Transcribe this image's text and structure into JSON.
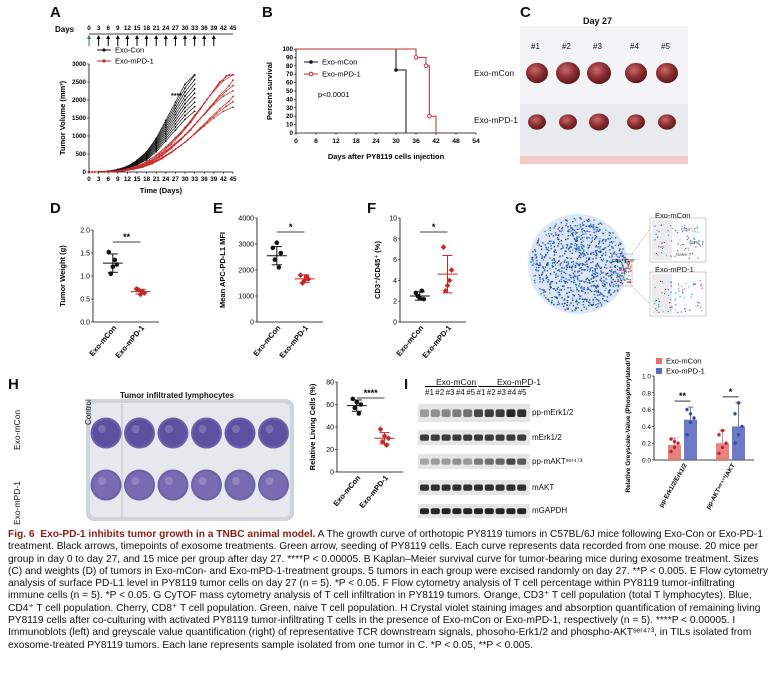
{
  "panels": {
    "A": "A",
    "B": "B",
    "C": "C",
    "D": "D",
    "E": "E",
    "F": "F",
    "G": "G",
    "H": "H",
    "I": "I"
  },
  "panelA": {
    "timeline_label": "Days",
    "timeline_ticks": [
      "0",
      "3",
      "6",
      "9",
      "12",
      "15",
      "18",
      "21",
      "24",
      "27",
      "30",
      "33",
      "36",
      "39",
      "42",
      "45"
    ],
    "chart_data": {
      "type": "line",
      "title": "",
      "xlabel": "Time (Days)",
      "ylabel": "Tumor Volume (mm³)",
      "xlim": [
        0,
        45
      ],
      "ylim": [
        0,
        3000
      ],
      "xticks": [
        "0",
        "3",
        "6",
        "9",
        "12",
        "15",
        "18",
        "21",
        "24",
        "27",
        "30",
        "33",
        "36",
        "39",
        "42",
        "45"
      ],
      "yticks": [
        "0",
        "500",
        "1000",
        "1500",
        "2000",
        "2500",
        "3000"
      ],
      "annotation": "****",
      "series": [
        {
          "name": "Exo-Con",
          "color": "#111111",
          "x": [
            0,
            3,
            6,
            9,
            12,
            15,
            18,
            21,
            24,
            27,
            30,
            33
          ],
          "values": [
            0,
            5,
            20,
            60,
            130,
            260,
            450,
            750,
            1150,
            1550,
            1950,
            2250
          ]
        },
        {
          "name": "Exo-mPD-1",
          "color": "#c62828",
          "x": [
            0,
            3,
            6,
            9,
            12,
            15,
            18,
            21,
            24,
            27,
            30,
            33,
            36,
            39,
            42,
            45
          ],
          "values": [
            0,
            4,
            12,
            35,
            80,
            150,
            260,
            420,
            620,
            850,
            1100,
            1400,
            1700,
            2000,
            2250,
            2400
          ]
        }
      ]
    }
  },
  "panelB": {
    "chart_data": {
      "type": "line",
      "xlabel": "Days after PY8119 cells injection",
      "ylabel": "Percent survival",
      "xlim": [
        0,
        54
      ],
      "ylim": [
        0,
        100
      ],
      "xticks": [
        "0",
        "6",
        "12",
        "18",
        "24",
        "30",
        "36",
        "42",
        "48",
        "54"
      ],
      "yticks": [
        "0",
        "10",
        "20",
        "30",
        "40",
        "50",
        "60",
        "70",
        "80",
        "90",
        "100"
      ],
      "annotation": "p<0.0001",
      "series": [
        {
          "name": "Exo-mCon",
          "color": "#111111",
          "steps": [
            [
              0,
              100
            ],
            [
              30,
              100
            ],
            [
              30,
              75
            ],
            [
              33,
              75
            ],
            [
              33,
              0
            ]
          ]
        },
        {
          "name": "Exo-mPD-1",
          "color": "#c62828",
          "steps": [
            [
              0,
              100
            ],
            [
              36,
              100
            ],
            [
              36,
              90
            ],
            [
              39,
              90
            ],
            [
              39,
              80
            ],
            [
              40,
              80
            ],
            [
              40,
              20
            ],
            [
              42,
              20
            ],
            [
              42,
              0
            ]
          ]
        }
      ]
    }
  },
  "panelC": {
    "day": "Day 27",
    "cols": [
      "#1",
      "#2",
      "#3",
      "#4",
      "#5"
    ],
    "rows": [
      "Exo-mCon",
      "Exo-mPD-1"
    ]
  },
  "panelD": {
    "chart_data": {
      "type": "scatter",
      "ylabel": "Tumor Weight (g)",
      "categories": [
        "Exo-mCon",
        "Exo-mPD-1"
      ],
      "ylim": [
        0,
        2.0
      ],
      "yticks": [
        "0.0",
        "0.5",
        "1.0",
        "1.5",
        "2.0"
      ],
      "series": [
        {
          "name": "Exo-mCon",
          "color": "#111111",
          "values": [
            1.52,
            1.25,
            1.05,
            1.35,
            1.2
          ],
          "mean": 1.28,
          "sd": 0.2
        },
        {
          "name": "Exo-mPD-1",
          "color": "#c62828",
          "values": [
            0.72,
            0.63,
            0.7,
            0.66,
            0.6
          ],
          "mean": 0.66,
          "sd": 0.05
        }
      ],
      "annotation": "**"
    }
  },
  "panelE": {
    "chart_data": {
      "type": "scatter",
      "ylabel": "Mean APC-PD-L1 MFI",
      "categories": [
        "Exo-mCon",
        "Exo-mPD-1"
      ],
      "ylim": [
        0,
        4000
      ],
      "yticks": [
        "0",
        "1000",
        "2000",
        "3000",
        "4000"
      ],
      "series": [
        {
          "name": "Exo-mCon",
          "color": "#111111",
          "values": [
            2850,
            2650,
            2400,
            2100,
            3050
          ],
          "mean": 2550,
          "sd": 350
        },
        {
          "name": "Exo-mPD-1",
          "color": "#c62828",
          "values": [
            1800,
            1650,
            1500,
            1750,
            1600
          ],
          "mean": 1660,
          "sd": 150
        }
      ],
      "annotation": "*"
    }
  },
  "panelF": {
    "chart_data": {
      "type": "scatter",
      "ylabel": "CD3⁺/CD45⁺ (%)",
      "categories": [
        "Exo-mCon",
        "Exo-mPD-1"
      ],
      "ylim": [
        0,
        10
      ],
      "yticks": [
        "0",
        "2",
        "4",
        "6",
        "8",
        "10"
      ],
      "series": [
        {
          "name": "Exo-mCon",
          "color": "#111111",
          "values": [
            2.8,
            2.2,
            2.5,
            3.0,
            2.3
          ],
          "mean": 2.5,
          "sd": 0.4
        },
        {
          "name": "Exo-mPD-1",
          "color": "#c62828",
          "values": [
            7.2,
            5.0,
            3.0,
            4.0,
            3.5
          ],
          "mean": 4.6,
          "sd": 1.8
        }
      ],
      "annotation": "*"
    }
  },
  "panelG": {
    "labels": [
      "Exo-mCon",
      "Exo-mPD-1"
    ],
    "subset_labels": [
      "CD4⁺ T",
      "CD8⁺ T",
      "Naive T"
    ],
    "gate_label": "CD4⁺ CD8⁺"
  },
  "panelH": {
    "row_labels": [
      "Exo-mCon",
      "Exo-mPD-1"
    ],
    "control": "Control",
    "til": "Tumor infiltrated lymphocytes",
    "chart_data": {
      "type": "scatter",
      "ylabel": "Relative Living Cells (%)",
      "categories": [
        "Exo-mCon",
        "Exo-mPD-1"
      ],
      "ylim": [
        0,
        80
      ],
      "yticks": [
        "0",
        "20",
        "40",
        "60",
        "80"
      ],
      "series": [
        {
          "name": "Exo-mCon",
          "color": "#111111",
          "values": [
            65,
            60,
            57,
            52,
            62
          ],
          "mean": 59,
          "sd": 5
        },
        {
          "name": "Exo-mPD-1",
          "color": "#c62828",
          "values": [
            38,
            30,
            27,
            24,
            32
          ],
          "mean": 30,
          "sd": 5
        }
      ],
      "annotation": "****"
    }
  },
  "panelI": {
    "group1": "Exo-mCon",
    "group2": "Exo-mPD-1",
    "lanes": [
      "#1",
      "#2",
      "#3",
      "#4",
      "#5",
      "#1",
      "#2",
      "#3",
      "#4",
      "#5"
    ],
    "blots": [
      "pp-mErk1/2",
      "mErk1/2",
      "pp-mAKTˢᵉʳ⁴⁷³",
      "mAKT",
      "mGAPDH"
    ],
    "chart_data": {
      "type": "bar",
      "ylabel": "Relative Greyscale-Value (Phosphorylated/Total)",
      "categories": [
        "pp-Erk1/2/Erk1/2",
        "pp-AKTˢᵉʳ⁴⁷³/AKT"
      ],
      "ylim": [
        0,
        1.0
      ],
      "yticks": [
        "0.0",
        "0.2",
        "0.4",
        "0.6",
        "0.8",
        "1.0"
      ],
      "series": [
        {
          "name": "Exo-mCon",
          "color": "#e57373",
          "values": [
            0.18,
            0.2
          ],
          "sd": [
            0.08,
            0.15
          ],
          "points": [
            [
              0.1,
              0.15,
              0.2,
              0.25,
              0.22
            ],
            [
              0.08,
              0.15,
              0.2,
              0.3,
              0.35
            ]
          ]
        },
        {
          "name": "Exo-mPD-1",
          "color": "#5c6bc0",
          "values": [
            0.48,
            0.4
          ],
          "sd": [
            0.15,
            0.28
          ],
          "points": [
            [
              0.3,
              0.45,
              0.5,
              0.6,
              0.55
            ],
            [
              0.2,
              0.3,
              0.4,
              0.55,
              0.68
            ]
          ]
        }
      ],
      "annotations": [
        "**",
        "*"
      ]
    }
  },
  "caption": {
    "fig": "Fig. 6",
    "title": "Exo-PD-1 inhibits tumor growth in a TNBC animal model.",
    "body": " A The growth curve of orthotopic PY8119 tumors in C57BL/6J mice following Exo-Con or Exo-PD-1 treatment. Black arrows, timepoints of exosome treatments. Green arrow, seeding of PY8119 cells. Each curve represents data recorded from one mouse. 20 mice per group in day 0 to day 27, and 15 mice per group after day 27. ****P < 0.00005. B Kaplan–Meier survival curve for tumor-bearing mice during exosome treatment. Sizes (C) and weights (D) of tumors in Exo-mCon- and Exo-mPD-1-treatment groups. 5 tumors in each group were excised randomly on day 27. **P < 0.005. E Flow cytometry analysis of surface PD-L1 level in PY8119 tumor cells on day 27 (n = 5). *P < 0.05. F Flow cytometry analysis of T cell percentage within PY8119 tumor-infiltrating immune cells (n = 5). *P < 0.05. G CyTOF mass cytometry analysis of T cell infiltration in PY8119 tumors. Orange, CD3⁺ T cell population (total T lymphocytes). Blue, CD4⁺ T cell population. Cherry, CD8⁺ T cell population. Green, naive T cell population. H Crystal violet staining images and absorption quantification of remaining living PY8119 cells after co-culturing with activated PY8119 tumor-infiltrating T cells in the presence of Exo-mCon or Exo-mPD-1, respectively (n = 5). ****P < 0.00005. I Immunoblots (left) and greyscale value quantification (right) of representative TCR downstream signals, phosoho-Erk1/2 and phospho-AKTˢᵉʳ⁴⁷³, in TILs isolated from exosome-treated PY8119 tumors. Each lane represents sample isolated from one tumor in C. *P < 0.05, **P < 0.005."
  },
  "colors": {
    "con": "#111111",
    "pd1": "#c62828",
    "caption_title": "#8c1d18"
  }
}
